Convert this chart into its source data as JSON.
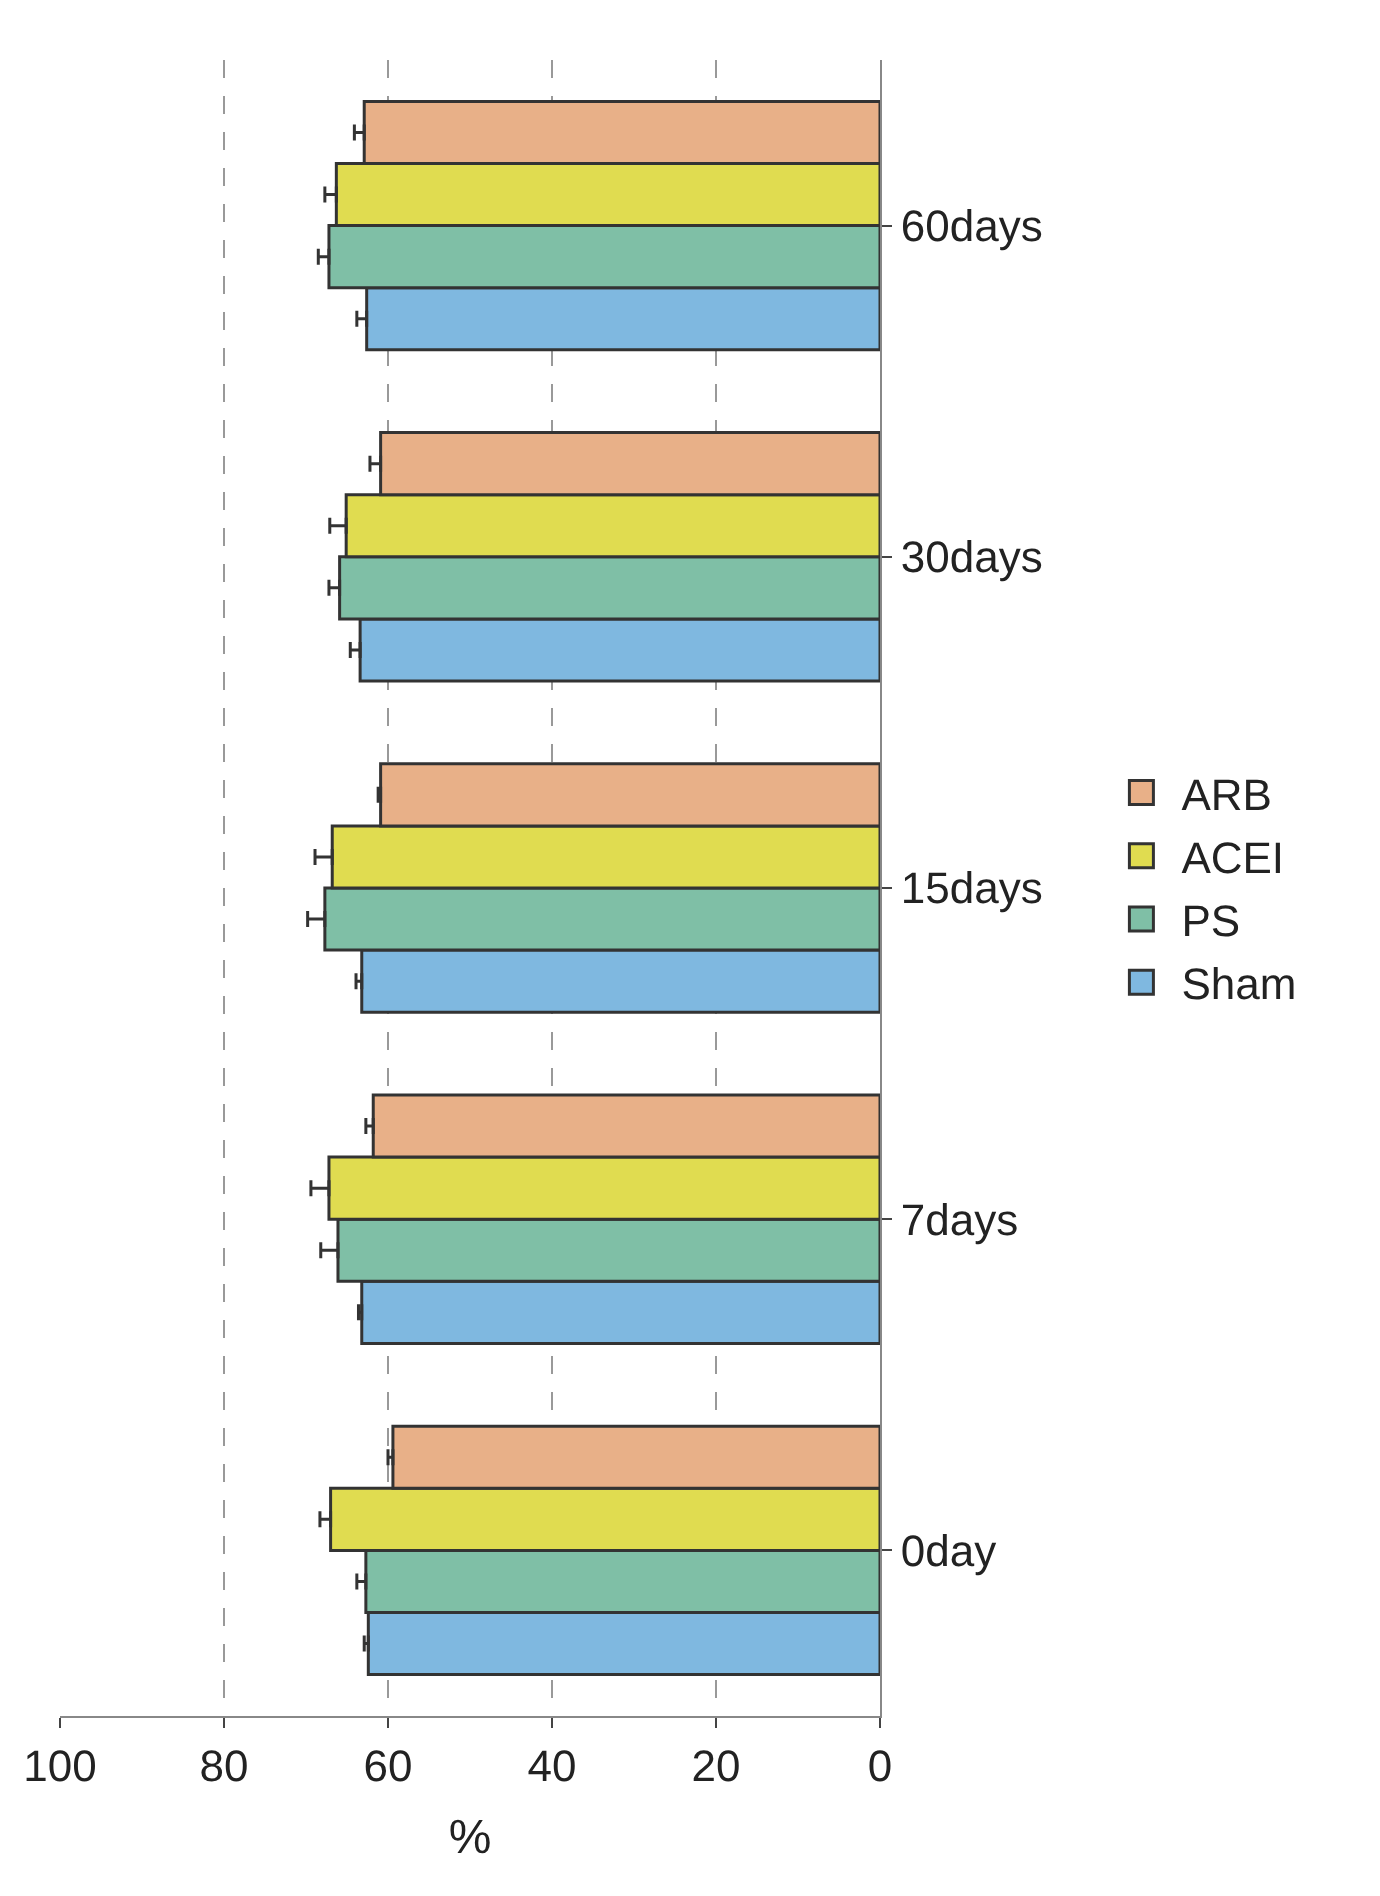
{
  "chart_data": {
    "type": "bar",
    "orientation": "horizontal",
    "xlabel": "%",
    "categories": [
      "60days",
      "30days",
      "15days",
      "7days",
      "0day"
    ],
    "series": [
      {
        "name": "Sham",
        "color": "#7fb8e0",
        "values": [
          62.6,
          63.4,
          63.2,
          63.2,
          62.4
        ],
        "errors": [
          [
            62.6,
            63.8
          ],
          [
            63.4,
            64.6
          ],
          [
            63.2,
            63.9
          ],
          [
            63.2,
            63.6
          ],
          [
            62.4,
            62.9
          ]
        ]
      },
      {
        "name": "PS",
        "color": "#7fbfa6",
        "values": [
          67.2,
          65.9,
          67.7,
          66.1,
          62.7
        ],
        "errors": [
          [
            67.2,
            68.5
          ],
          [
            65.9,
            67.2
          ],
          [
            67.7,
            69.8
          ],
          [
            66.1,
            68.2
          ],
          [
            62.7,
            63.8
          ]
        ]
      },
      {
        "name": "ACEI",
        "color": "#e0dc50",
        "values": [
          66.3,
          65.1,
          66.8,
          67.2,
          67.0
        ],
        "errors": [
          [
            66.3,
            67.7
          ],
          [
            65.1,
            67.1
          ],
          [
            66.8,
            68.9
          ],
          [
            67.2,
            69.4
          ],
          [
            67.0,
            68.3
          ]
        ]
      },
      {
        "name": "ARB",
        "color": "#e8b088",
        "values": [
          62.9,
          60.9,
          60.9,
          61.8,
          59.4
        ],
        "errors": [
          [
            62.9,
            64.1
          ],
          [
            60.9,
            62.2
          ],
          [
            60.9,
            61.2
          ],
          [
            61.8,
            62.7
          ],
          [
            59.4,
            60.0
          ]
        ]
      }
    ],
    "xlim": [
      100,
      0
    ],
    "xticks": [
      0,
      20,
      40,
      60,
      80,
      100
    ],
    "grid": "x",
    "legend": "right"
  }
}
